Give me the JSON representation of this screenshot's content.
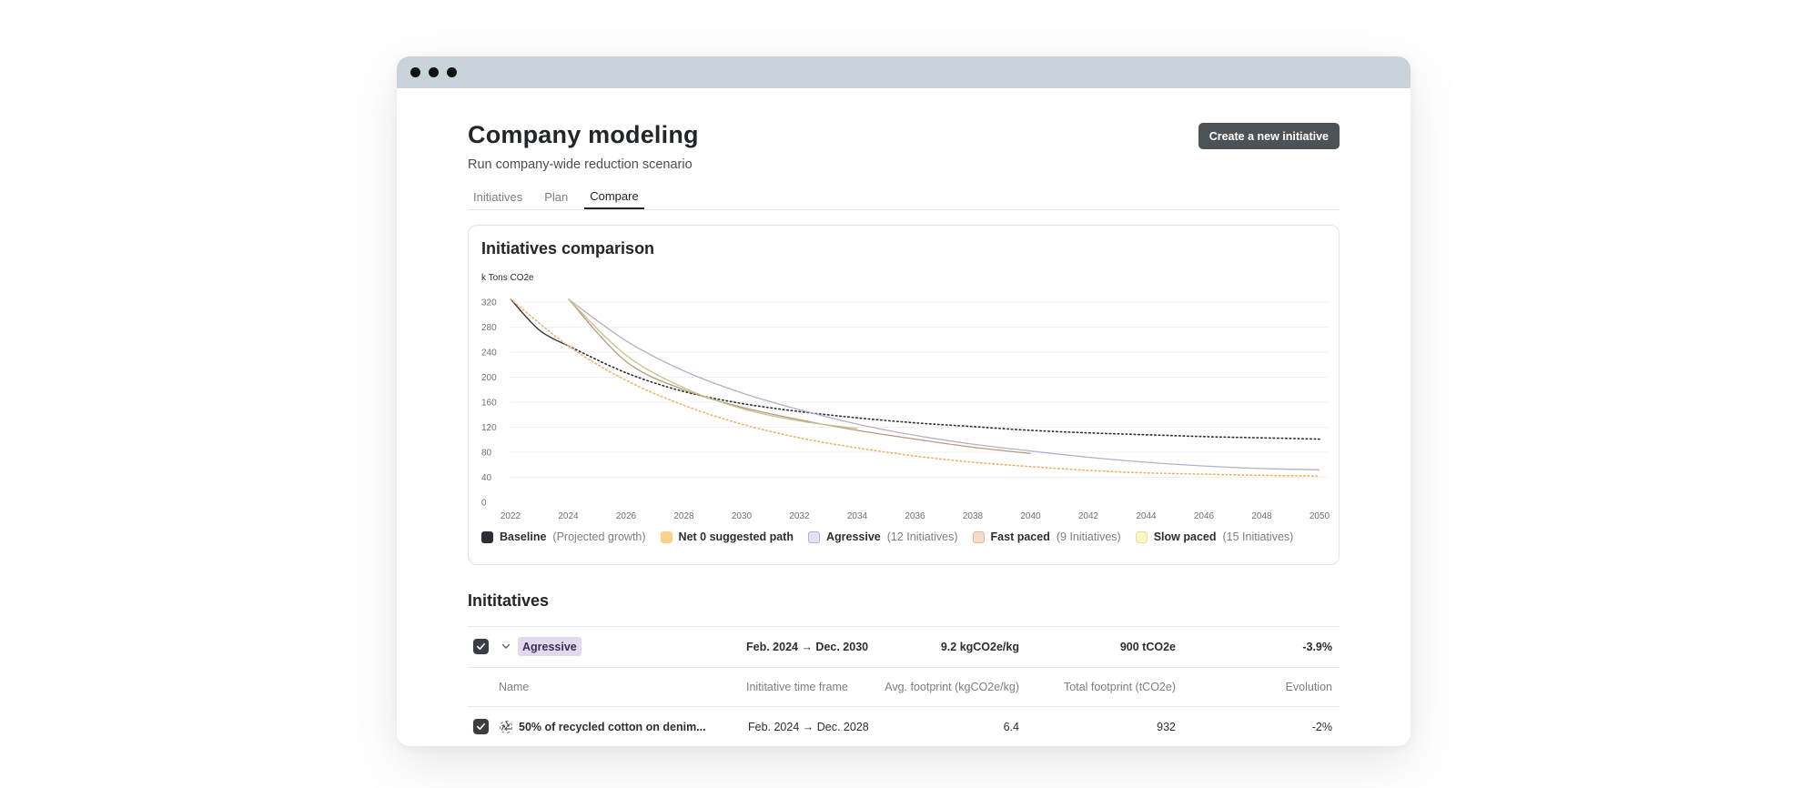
{
  "window": {
    "controls": [
      "close",
      "minimize",
      "maximize"
    ]
  },
  "header": {
    "title": "Company modeling",
    "subtitle": "Run company-wide reduction scenario",
    "create_button": "Create a new initiative"
  },
  "tabs": [
    {
      "label": "Initiatives",
      "active": false
    },
    {
      "label": "Plan",
      "active": false
    },
    {
      "label": "Compare",
      "active": true
    }
  ],
  "chart": {
    "title": "Initiatives comparison",
    "legend": [
      {
        "name": "Baseline",
        "note": "(Projected growth)",
        "color": "#2b2f33"
      },
      {
        "name": "Net 0 suggested path",
        "note": "",
        "color": "#f6d28c"
      },
      {
        "name": "Agressive",
        "note": "(12 Initiatives)",
        "color": "#e7e0f2"
      },
      {
        "name": "Fast paced",
        "note": "(9 Initiatives)",
        "color": "#f6dccb"
      },
      {
        "name": "Slow paced",
        "note": "(15 Initiatives)",
        "color": "#fbf5c8"
      }
    ]
  },
  "chart_data": {
    "type": "line",
    "ylabel": "k Tons CO2e",
    "ylim": [
      0,
      320
    ],
    "yticks": [
      0,
      40,
      80,
      120,
      160,
      200,
      240,
      280,
      320
    ],
    "xlim": [
      2022,
      2050
    ],
    "xticks": [
      2022,
      2024,
      2026,
      2028,
      2030,
      2032,
      2034,
      2036,
      2038,
      2040,
      2042,
      2044,
      2046,
      2048,
      2050
    ],
    "grid": true,
    "legend_position": "bottom",
    "series": [
      {
        "name": "Baseline",
        "color": "#2b2f33",
        "style": "solid",
        "x": [
          2022,
          2023,
          2024
        ],
        "y": [
          325,
          275,
          250
        ]
      },
      {
        "name": "Baseline",
        "color": "#2b2f33",
        "style": "dotted",
        "x": [
          2024,
          2026,
          2028,
          2030,
          2032,
          2034,
          2036,
          2038,
          2040,
          2042,
          2044,
          2046,
          2048,
          2050
        ],
        "y": [
          250,
          207,
          177,
          158,
          145,
          135,
          127,
          121,
          115,
          111,
          108,
          105,
          103,
          101
        ]
      },
      {
        "name": "Net 0 suggested path",
        "color": "#f2b066",
        "style": "dotted",
        "x": [
          2022,
          2024,
          2026,
          2028,
          2030,
          2032,
          2034,
          2036,
          2038,
          2040,
          2042,
          2044,
          2046,
          2048,
          2050
        ],
        "y": [
          325,
          250,
          195,
          155,
          125,
          103,
          87,
          74,
          64,
          57,
          51,
          47,
          45,
          43,
          42
        ]
      },
      {
        "name": "Agressive",
        "color": "#b8aec9",
        "style": "solid",
        "x": [
          2024,
          2026,
          2028,
          2030,
          2032,
          2034,
          2036,
          2038,
          2040,
          2042,
          2044,
          2046,
          2048,
          2050
        ],
        "y": [
          325,
          258,
          210,
          175,
          148,
          125,
          107,
          93,
          82,
          72,
          64,
          58,
          54,
          52
        ]
      },
      {
        "name": "Fast paced",
        "color": "#b49a7d",
        "style": "solid",
        "x": [
          2024,
          2026,
          2028,
          2030,
          2032,
          2034,
          2036,
          2038,
          2040
        ],
        "y": [
          325,
          225,
          180,
          152,
          132,
          115,
          101,
          88,
          78
        ]
      },
      {
        "name": "Slow paced",
        "color": "#c9bf8e",
        "style": "solid",
        "x": [
          2024,
          2026,
          2028,
          2030,
          2032,
          2034
        ],
        "y": [
          325,
          235,
          183,
          150,
          130,
          118
        ]
      }
    ]
  },
  "initiatives": {
    "title": "Inititatives",
    "group": {
      "tag": "Agressive",
      "timeframe": "Feb. 2024 → Dec. 2030",
      "avg_footprint": "9.2 kgCO2e/kg",
      "total_footprint": "900 tCO2e",
      "evolution": "-3.9%"
    },
    "columns": {
      "name": "Name",
      "timeframe": "Inititative  time frame",
      "avg": "Avg. footprint (kgCO2e/kg)",
      "total": "Total footprint (tCO2e)",
      "evolution": "Evolution"
    },
    "rows": [
      {
        "name": "50% of recycled cotton on denim...",
        "timeframe": "Feb. 2024 → Dec. 2028",
        "avg": "6.4",
        "total": "932",
        "evolution": "-2%"
      }
    ]
  }
}
